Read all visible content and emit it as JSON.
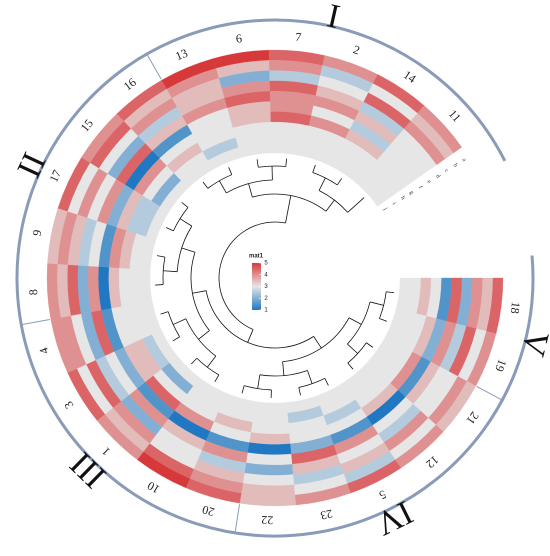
{
  "chart_data": {
    "type": "circular_heatmap",
    "categories": [
      "18",
      "19",
      "21",
      "12",
      "5",
      "23",
      "22",
      "20",
      "10",
      "1",
      "3",
      "4",
      "8",
      "9",
      "17",
      "15",
      "16",
      "13",
      "6",
      "7",
      "2",
      "14",
      "11"
    ],
    "groups": [
      {
        "label": "V",
        "start": 0,
        "count": 2
      },
      {
        "label": "IV",
        "start": 2,
        "count": 5
      },
      {
        "label": "III",
        "start": 7,
        "count": 5
      },
      {
        "label": "II",
        "start": 12,
        "count": 5
      },
      {
        "label": "I",
        "start": 17,
        "count": 6
      }
    ],
    "series": [
      {
        "name": "a",
        "values": [
          4.5,
          4,
          3.5,
          4,
          4.5,
          4,
          3.5,
          4.5,
          5,
          4,
          4.5,
          4,
          4,
          3.5,
          4.5,
          4,
          4.5,
          5,
          5,
          4.5,
          4,
          4.5,
          4
        ]
      },
      {
        "name": "b",
        "values": [
          3.5,
          3,
          4,
          3,
          2.5,
          3,
          3.5,
          4,
          4.5,
          3.5,
          3,
          4,
          3.5,
          4,
          3,
          4.5,
          3.5,
          4,
          3.5,
          4,
          2.5,
          3,
          3.5
        ]
      },
      {
        "name": "c",
        "values": [
          4,
          4.5,
          3,
          4,
          3.5,
          2.5,
          3,
          3.5,
          3,
          4,
          4.5,
          3,
          4.5,
          3.5,
          4,
          3,
          4,
          3.5,
          2,
          2.5,
          3,
          4.5,
          4
        ]
      },
      {
        "name": "d",
        "values": [
          2,
          2.5,
          3,
          2.5,
          3,
          3.5,
          2,
          2.5,
          3,
          2,
          2.5,
          2,
          2,
          2.5,
          3,
          2,
          2.5,
          3.5,
          4,
          4.5,
          3.5,
          2.5,
          3
        ]
      },
      {
        "name": "e",
        "values": [
          4.5,
          4,
          3.5,
          3,
          4,
          4.5,
          3,
          4,
          3.5,
          4,
          3,
          4.5,
          4,
          3,
          4,
          4.5,
          3.5,
          4,
          4.5,
          4,
          4,
          3.5,
          3
        ]
      },
      {
        "name": "f",
        "values": [
          1.5,
          2,
          1.5,
          1,
          1.5,
          2,
          1,
          1.5,
          1,
          1.5,
          2,
          1.5,
          1,
          1.5,
          2,
          1,
          1.5,
          3,
          3.5,
          4,
          3,
          2.5,
          3
        ]
      },
      {
        "name": "g",
        "values": [
          3,
          3.5,
          4,
          3.5,
          3,
          3,
          3.5,
          3,
          4,
          4.5,
          3.5,
          3,
          3.5,
          4,
          3.5,
          4,
          3,
          3,
          3.5,
          4.5,
          4,
          3.5,
          3
        ]
      },
      {
        "name": "h",
        "values": [
          3.5,
          3,
          3,
          3,
          2.5,
          3,
          3,
          3.5,
          3,
          3,
          3.5,
          3,
          3,
          3.5,
          2.5,
          3,
          3.5,
          3,
          3,
          3,
          3,
          3,
          3
        ]
      },
      {
        "name": "i",
        "values": [
          3,
          3,
          3,
          3,
          3,
          2.5,
          3,
          3,
          3,
          2,
          2.5,
          3,
          3,
          3,
          2.5,
          2,
          3,
          2.5,
          3,
          3,
          3,
          3,
          3
        ]
      },
      {
        "name": "j",
        "values": [
          3,
          3,
          3,
          3,
          3,
          3,
          3,
          3,
          3,
          3,
          3,
          3,
          3,
          3,
          3,
          3,
          3,
          3,
          3,
          3,
          3,
          3,
          3
        ]
      }
    ],
    "colors": {
      "low": "#1f78c1",
      "mid": "#e6e6e6",
      "high": "#d7393b"
    },
    "legend": {
      "title": "mat1",
      "range": [
        1,
        5
      ],
      "ticks": [
        1,
        2,
        3,
        4,
        5
      ]
    }
  }
}
